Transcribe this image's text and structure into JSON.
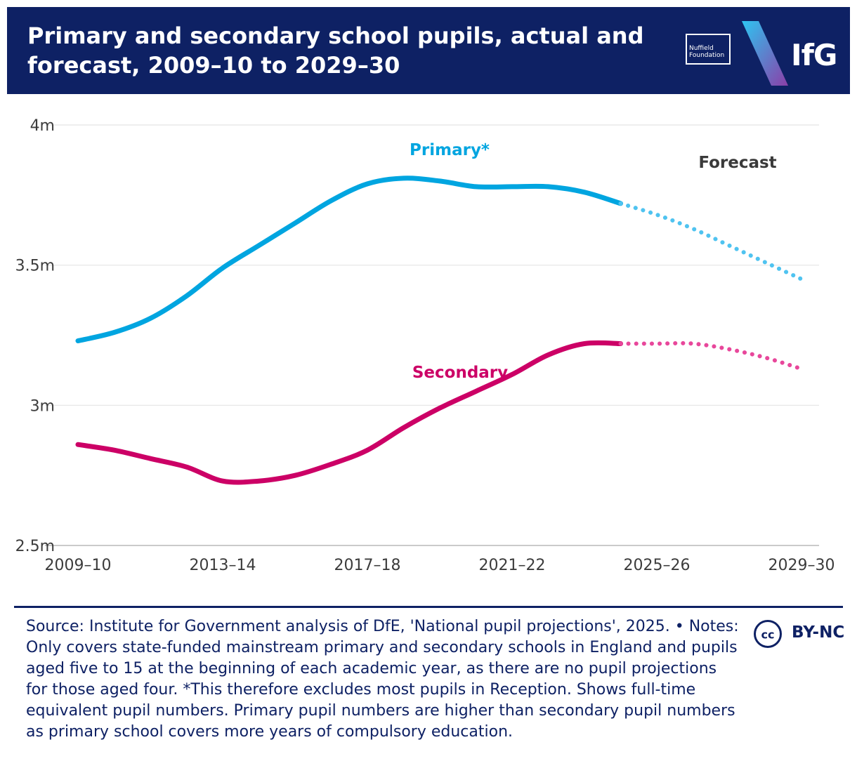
{
  "header": {
    "title": "Primary and secondary school pupils, actual and forecast, 2009–10 to 2029–30",
    "logo_small_text": "Nuffield Foundation",
    "logo_text": "IfG",
    "background_color": "#0e2164"
  },
  "chart_data": {
    "type": "line",
    "title": "Primary and secondary school pupils, actual and forecast, 2009–10 to 2029–30",
    "xlabel": "",
    "ylabel": "",
    "x": [
      "2009–10",
      "2010–11",
      "2011–12",
      "2012–13",
      "2013–14",
      "2014–15",
      "2015–16",
      "2016–17",
      "2017–18",
      "2018–19",
      "2019–20",
      "2020–21",
      "2021–22",
      "2022–23",
      "2023–24",
      "2024–25",
      "2025–26",
      "2026–27",
      "2027–28",
      "2028–29",
      "2029–30"
    ],
    "x_tick_labels": [
      "2009–10",
      "2013–14",
      "2017–18",
      "2021–22",
      "2025–26",
      "2029–30"
    ],
    "y_tick_labels": [
      "2.5m",
      "3m",
      "3.5m",
      "4m"
    ],
    "y_ticks": [
      2.5,
      3.0,
      3.5,
      4.0
    ],
    "ylim": [
      2.5,
      4.0
    ],
    "y_unit": "million pupils",
    "grid": true,
    "forecast_label": "Forecast",
    "forecast_starts_at": "2024–25",
    "series": [
      {
        "name": "Primary*",
        "color": "#00a5e0",
        "forecast_color": "#4fc3f0",
        "values": [
          3.23,
          3.26,
          3.31,
          3.39,
          3.49,
          3.57,
          3.65,
          3.73,
          3.79,
          3.81,
          3.8,
          3.78,
          3.78,
          3.78,
          3.76,
          3.72,
          3.68,
          3.63,
          3.57,
          3.51,
          3.45
        ]
      },
      {
        "name": "Secondary",
        "color": "#cc0066",
        "forecast_color": "#e8479b",
        "values": [
          2.86,
          2.84,
          2.81,
          2.78,
          2.73,
          2.73,
          2.75,
          2.79,
          2.84,
          2.92,
          2.99,
          3.05,
          3.11,
          3.18,
          3.22,
          3.22,
          3.22,
          3.22,
          3.2,
          3.17,
          3.13
        ]
      }
    ]
  },
  "footer": {
    "note": "Source: Institute for Government analysis of DfE, 'National pupil projections', 2025. • Notes: Only covers state-funded mainstream primary and secondary schools in England and pupils aged five to 15 at the beginning of each academic year, as there are no pupil projections for those aged four. *This therefore excludes most pupils in Reception. Shows full-time equivalent pupil numbers. Primary pupil numbers are higher than secondary pupil numbers as primary school covers more years of compulsory education.",
    "cc_icon_text": "cc",
    "license": "BY-NC"
  }
}
